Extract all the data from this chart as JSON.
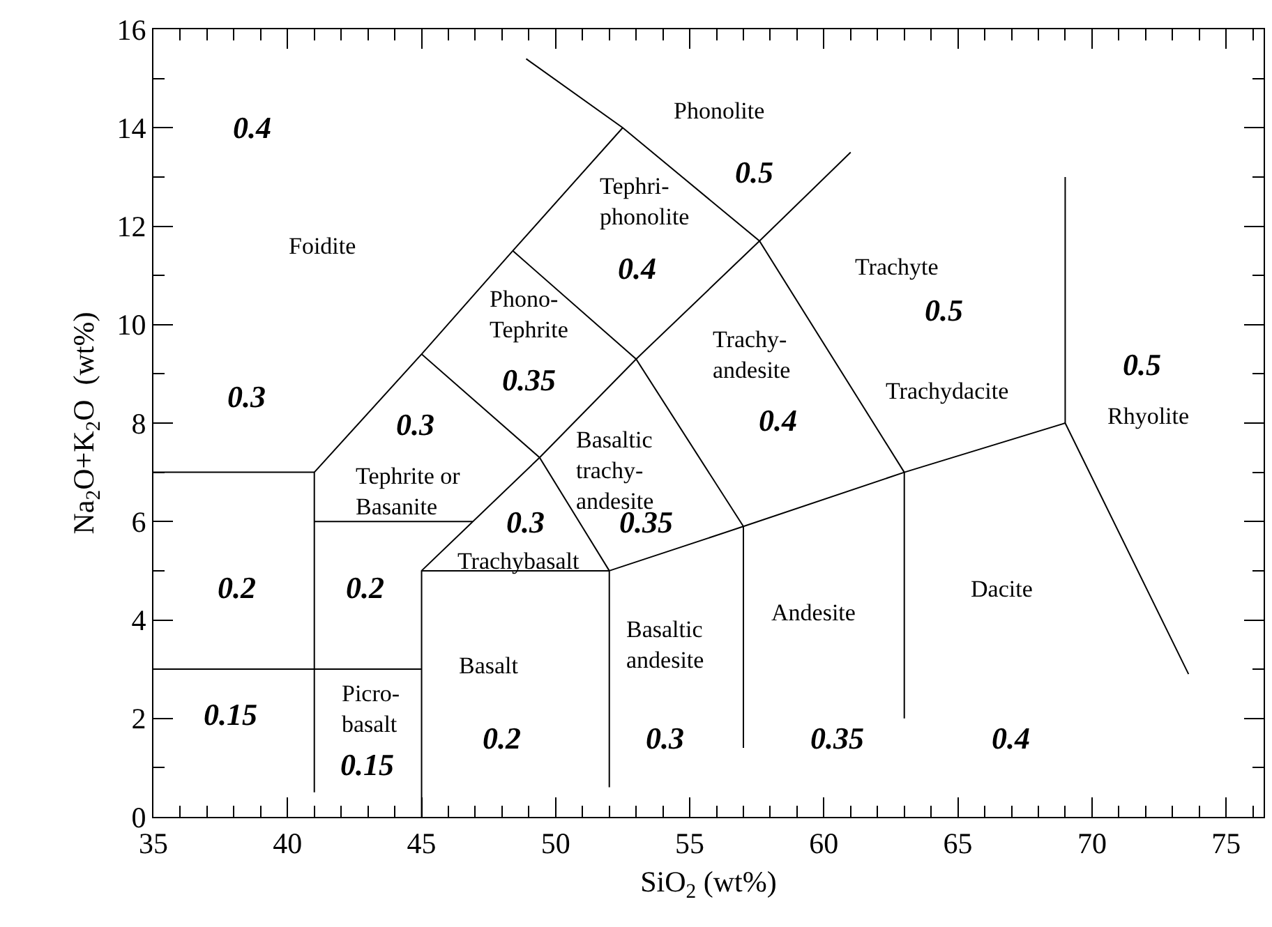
{
  "chart_data": {
    "type": "line",
    "xlabel": "SiO$_{2}$ (wt%)",
    "ylabel": "Na$_{2}$O+K$_{2}$O  (wt%)",
    "xlim": [
      35,
      76.4
    ],
    "ylim": [
      0,
      16
    ],
    "xticks": [
      35,
      40,
      45,
      50,
      55,
      60,
      65,
      70,
      75
    ],
    "yticks": [
      0,
      2,
      4,
      6,
      8,
      10,
      12,
      14,
      16
    ],
    "marker": "none",
    "line_style": "solid",
    "series": [
      {
        "color": "#000000",
        "x": [
          41,
          41,
          45,
          48.4,
          52.5
        ],
        "values": [
          0.5,
          7,
          9.4,
          11.5,
          14
        ]
      },
      {
        "color": "#000000",
        "x": [
          45,
          45,
          49.4,
          53,
          57.6,
          61
        ],
        "values": [
          0,
          5,
          7.3,
          9.3,
          11.7,
          13.5
        ]
      },
      {
        "color": "#000000",
        "x": [
          45,
          52,
          49.4,
          45
        ],
        "values": [
          5,
          5,
          7.3,
          9.4
        ]
      },
      {
        "color": "#000000",
        "x": [
          52,
          52,
          57,
          63,
          69
        ],
        "values": [
          0.6,
          5,
          5.9,
          7,
          8
        ]
      },
      {
        "color": "#000000",
        "x": [
          57,
          57,
          53,
          48.4
        ],
        "values": [
          1.4,
          5.9,
          9.3,
          11.5
        ]
      },
      {
        "color": "#000000",
        "x": [
          69,
          69,
          73.6
        ],
        "values": [
          13,
          8,
          2.9
        ]
      },
      {
        "color": "#000000",
        "x": [
          48.9,
          52.5,
          57.6,
          63,
          63
        ],
        "values": [
          15.4,
          14,
          11.7,
          7,
          2
        ]
      },
      {
        "color": "#000000",
        "x": [
          35,
          41
        ],
        "values": [
          7,
          7
        ]
      },
      {
        "color": "#000000",
        "x": [
          35,
          45
        ],
        "values": [
          3,
          3
        ]
      },
      {
        "color": "#000000",
        "x": [
          41,
          46.9
        ],
        "values": [
          6,
          6
        ]
      }
    ],
    "annotations": [
      "Foidite",
      "Tephrite or\nBasanite",
      "Picro-\nbasalt",
      "Basalt",
      "Trachybasalt",
      "Phono-\nTephrite",
      "Tephri-\nphonolite",
      "Phonolite",
      "Basaltic\ntrachy-\nandesite",
      "Trachy-\nandesite",
      "Basaltic\nandesite",
      "Andesite",
      "Trachyte",
      "Trachydacite",
      "Dacite",
      "Rhyolite",
      "0.4",
      "0.3",
      "0.2",
      "0.15",
      "0.3",
      "0.2",
      "0.15",
      "0.2",
      "0.3",
      "0.35",
      "0.4",
      "0.5",
      "0.35",
      "0.4",
      "0.3",
      "0.35",
      "0.5",
      "0.4",
      "0.5"
    ]
  }
}
